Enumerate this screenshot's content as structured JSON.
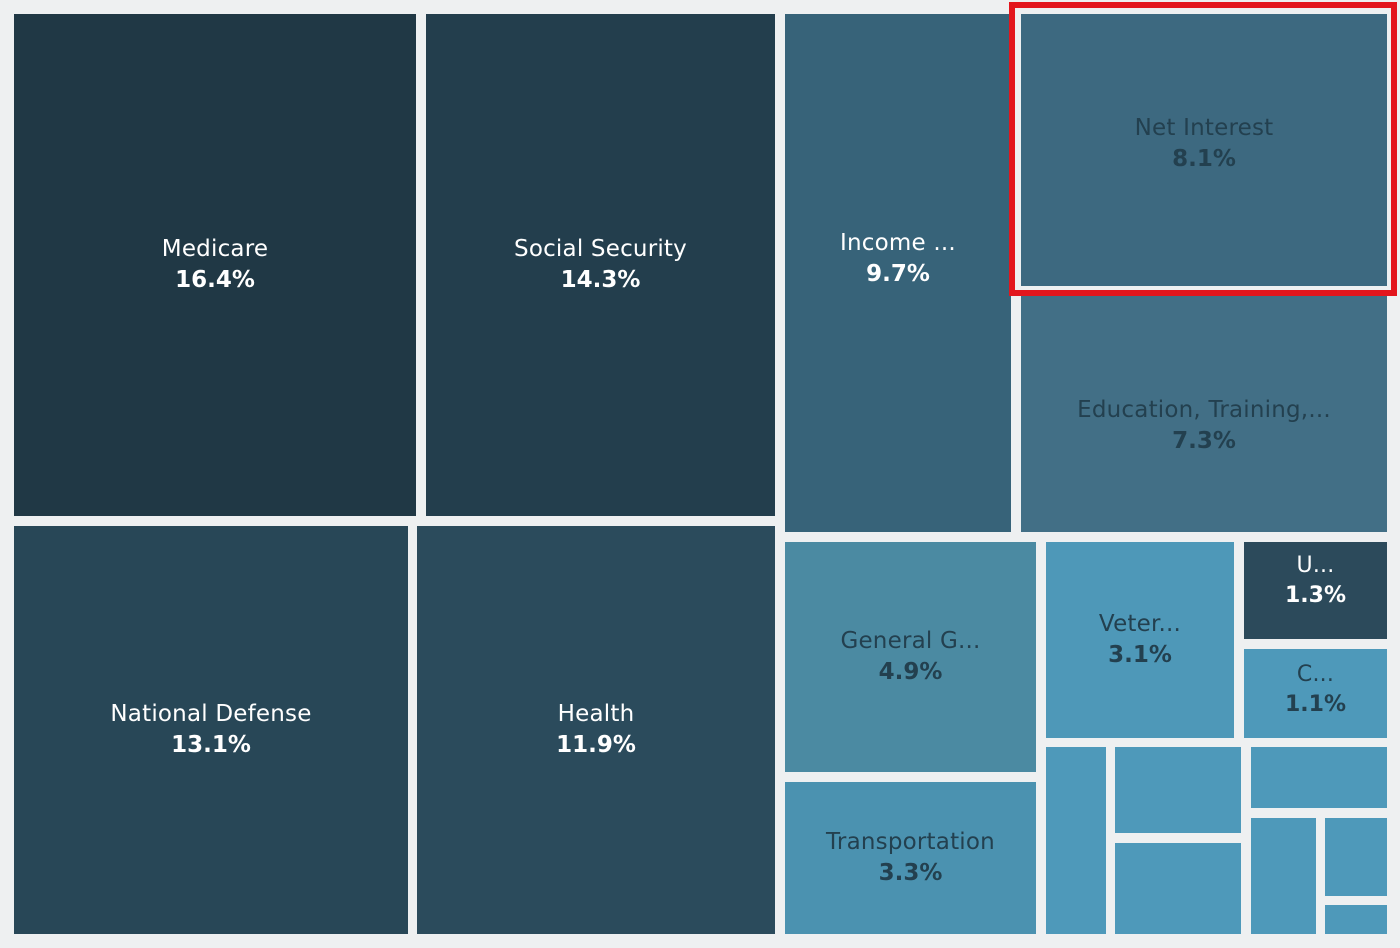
{
  "chart_data": {
    "type": "treemap",
    "colors": {
      "medicare": "#203845",
      "social_security": "#233e4d",
      "national_defense": "#284757",
      "health": "#2b4b5c",
      "income": "#376379",
      "net_interest": "#3d6980",
      "education": "#426f86",
      "unlabeled_dark": "#2c4a5b",
      "general": "#4b8aa2",
      "transportation": "#4b92b0",
      "veterans": "#4e98b8",
      "small": "#4e99ba",
      "highlight_border": "#e3161d"
    },
    "tiles": [
      {
        "id": "medicare",
        "label": "Medicare",
        "value": "16.4%",
        "percent": 16.4,
        "text": "light"
      },
      {
        "id": "social-security",
        "label": "Social Security",
        "value": "14.3%",
        "percent": 14.3,
        "text": "light"
      },
      {
        "id": "national-defense",
        "label": "National Defense",
        "value": "13.1%",
        "percent": 13.1,
        "text": "light"
      },
      {
        "id": "health",
        "label": "Health",
        "value": "11.9%",
        "percent": 11.9,
        "text": "light"
      },
      {
        "id": "income",
        "label": "Income ...",
        "value": "9.7%",
        "percent": 9.7,
        "text": "light"
      },
      {
        "id": "net-interest",
        "label": "Net Interest",
        "value": "8.1%",
        "percent": 8.1,
        "text": "dark",
        "highlighted": true
      },
      {
        "id": "education",
        "label": "Education, Training,...",
        "value": "7.3%",
        "percent": 7.3,
        "text": "dark"
      },
      {
        "id": "general-government",
        "label": "General G...",
        "value": "4.9%",
        "percent": 4.9,
        "text": "dark"
      },
      {
        "id": "transportation",
        "label": "Transportation",
        "value": "3.3%",
        "percent": 3.3,
        "text": "dark"
      },
      {
        "id": "veterans",
        "label": "Veter...",
        "value": "3.1%",
        "percent": 3.1,
        "text": "dark"
      },
      {
        "id": "u",
        "label": "U...",
        "value": "1.3%",
        "percent": 1.3,
        "text": "light"
      },
      {
        "id": "c",
        "label": "C...",
        "value": "1.1%",
        "percent": 1.1,
        "text": "dark"
      },
      {
        "id": "unlabeled-1",
        "label": "",
        "value": "",
        "text": "dark"
      },
      {
        "id": "unlabeled-2",
        "label": "",
        "value": "",
        "text": "dark"
      },
      {
        "id": "unlabeled-3",
        "label": "",
        "value": "",
        "text": "dark"
      },
      {
        "id": "unlabeled-4",
        "label": "",
        "value": "",
        "text": "dark"
      },
      {
        "id": "unlabeled-5",
        "label": "",
        "value": "",
        "text": "dark"
      },
      {
        "id": "unlabeled-6",
        "label": "",
        "value": "",
        "text": "dark"
      },
      {
        "id": "unlabeled-7",
        "label": "",
        "value": "",
        "text": "dark"
      },
      {
        "id": "unlabeled-8",
        "label": "",
        "value": "",
        "text": "dark"
      }
    ]
  }
}
